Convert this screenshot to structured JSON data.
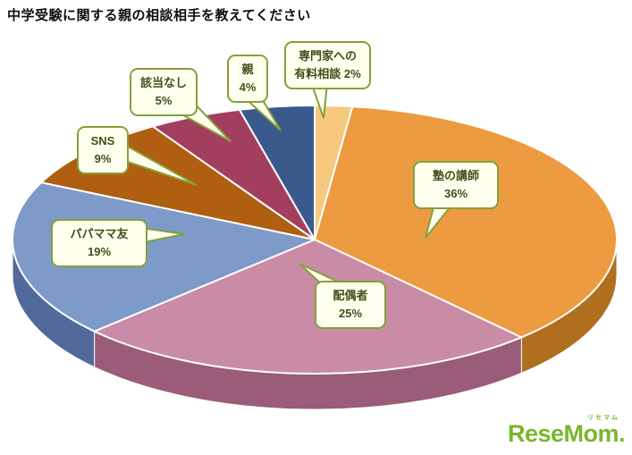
{
  "title": "中学受験に関する親の相談相手を教えてください",
  "chart_data": {
    "type": "pie",
    "style": "3d-pie",
    "title": "中学受験に関する親の相談相手を教えてください",
    "direction": "clockwise",
    "start_angle_deg": 0,
    "unit": "%",
    "slices": [
      {
        "name": "専門家への有料相談",
        "pct": "2%",
        "value": 2,
        "color": "#F6C97F",
        "side_color": "#C79A52"
      },
      {
        "name": "塾の講師",
        "pct": "36%",
        "value": 36,
        "color": "#EC9B40",
        "side_color": "#B06F1F"
      },
      {
        "name": "配偶者",
        "pct": "25%",
        "value": 25,
        "color": "#C98BA6",
        "side_color": "#9A5C78"
      },
      {
        "name": "パパママ友",
        "pct": "19%",
        "value": 19,
        "color": "#7E9AC8",
        "side_color": "#52699B"
      },
      {
        "name": "SNS",
        "pct": "9%",
        "value": 9,
        "color": "#B05E10",
        "side_color": "#7F4309"
      },
      {
        "name": "該当なし",
        "pct": "5%",
        "value": 5,
        "color": "#A23E5E",
        "side_color": "#742C43"
      },
      {
        "name": "親",
        "pct": "4%",
        "value": 4,
        "color": "#3A5A8E",
        "side_color": "#284066"
      }
    ],
    "callout_style": {
      "fill": "#FFFFEE",
      "border": "#84A03C",
      "text_color": "#404F1B"
    }
  },
  "logo": {
    "text": "ReseMom.",
    "ruby": "リセマム",
    "color": "#7AB62B"
  }
}
